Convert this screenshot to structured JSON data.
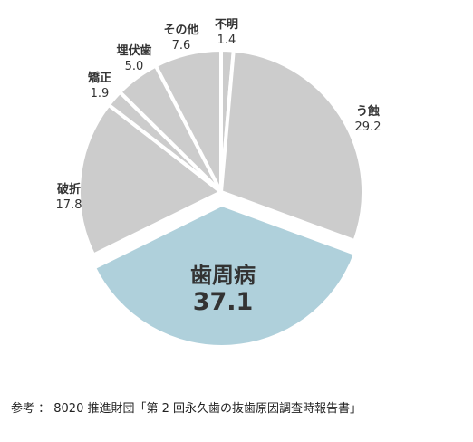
{
  "chart_data": {
    "type": "pie",
    "unit": "%",
    "slices": [
      {
        "label": "不明",
        "value": 1.4,
        "color": "#cccccc"
      },
      {
        "label": "う蝕",
        "value": 29.2,
        "color": "#cccccc"
      },
      {
        "label": "歯周病",
        "value": 37.1,
        "color": "#afd0db",
        "highlighted": true
      },
      {
        "label": "破折",
        "value": 17.8,
        "color": "#cccccc"
      },
      {
        "label": "矯正",
        "value": 1.9,
        "color": "#cccccc"
      },
      {
        "label": "埋伏歯",
        "value": 5.0,
        "color": "#cccccc"
      },
      {
        "label": "その他",
        "value": 7.6,
        "color": "#cccccc"
      }
    ],
    "start_direction": "top",
    "order": "clockwise"
  },
  "source": "参考 ： 8020 推進財団「第 2 回永久歯の抜歯原因調査時報告書」"
}
